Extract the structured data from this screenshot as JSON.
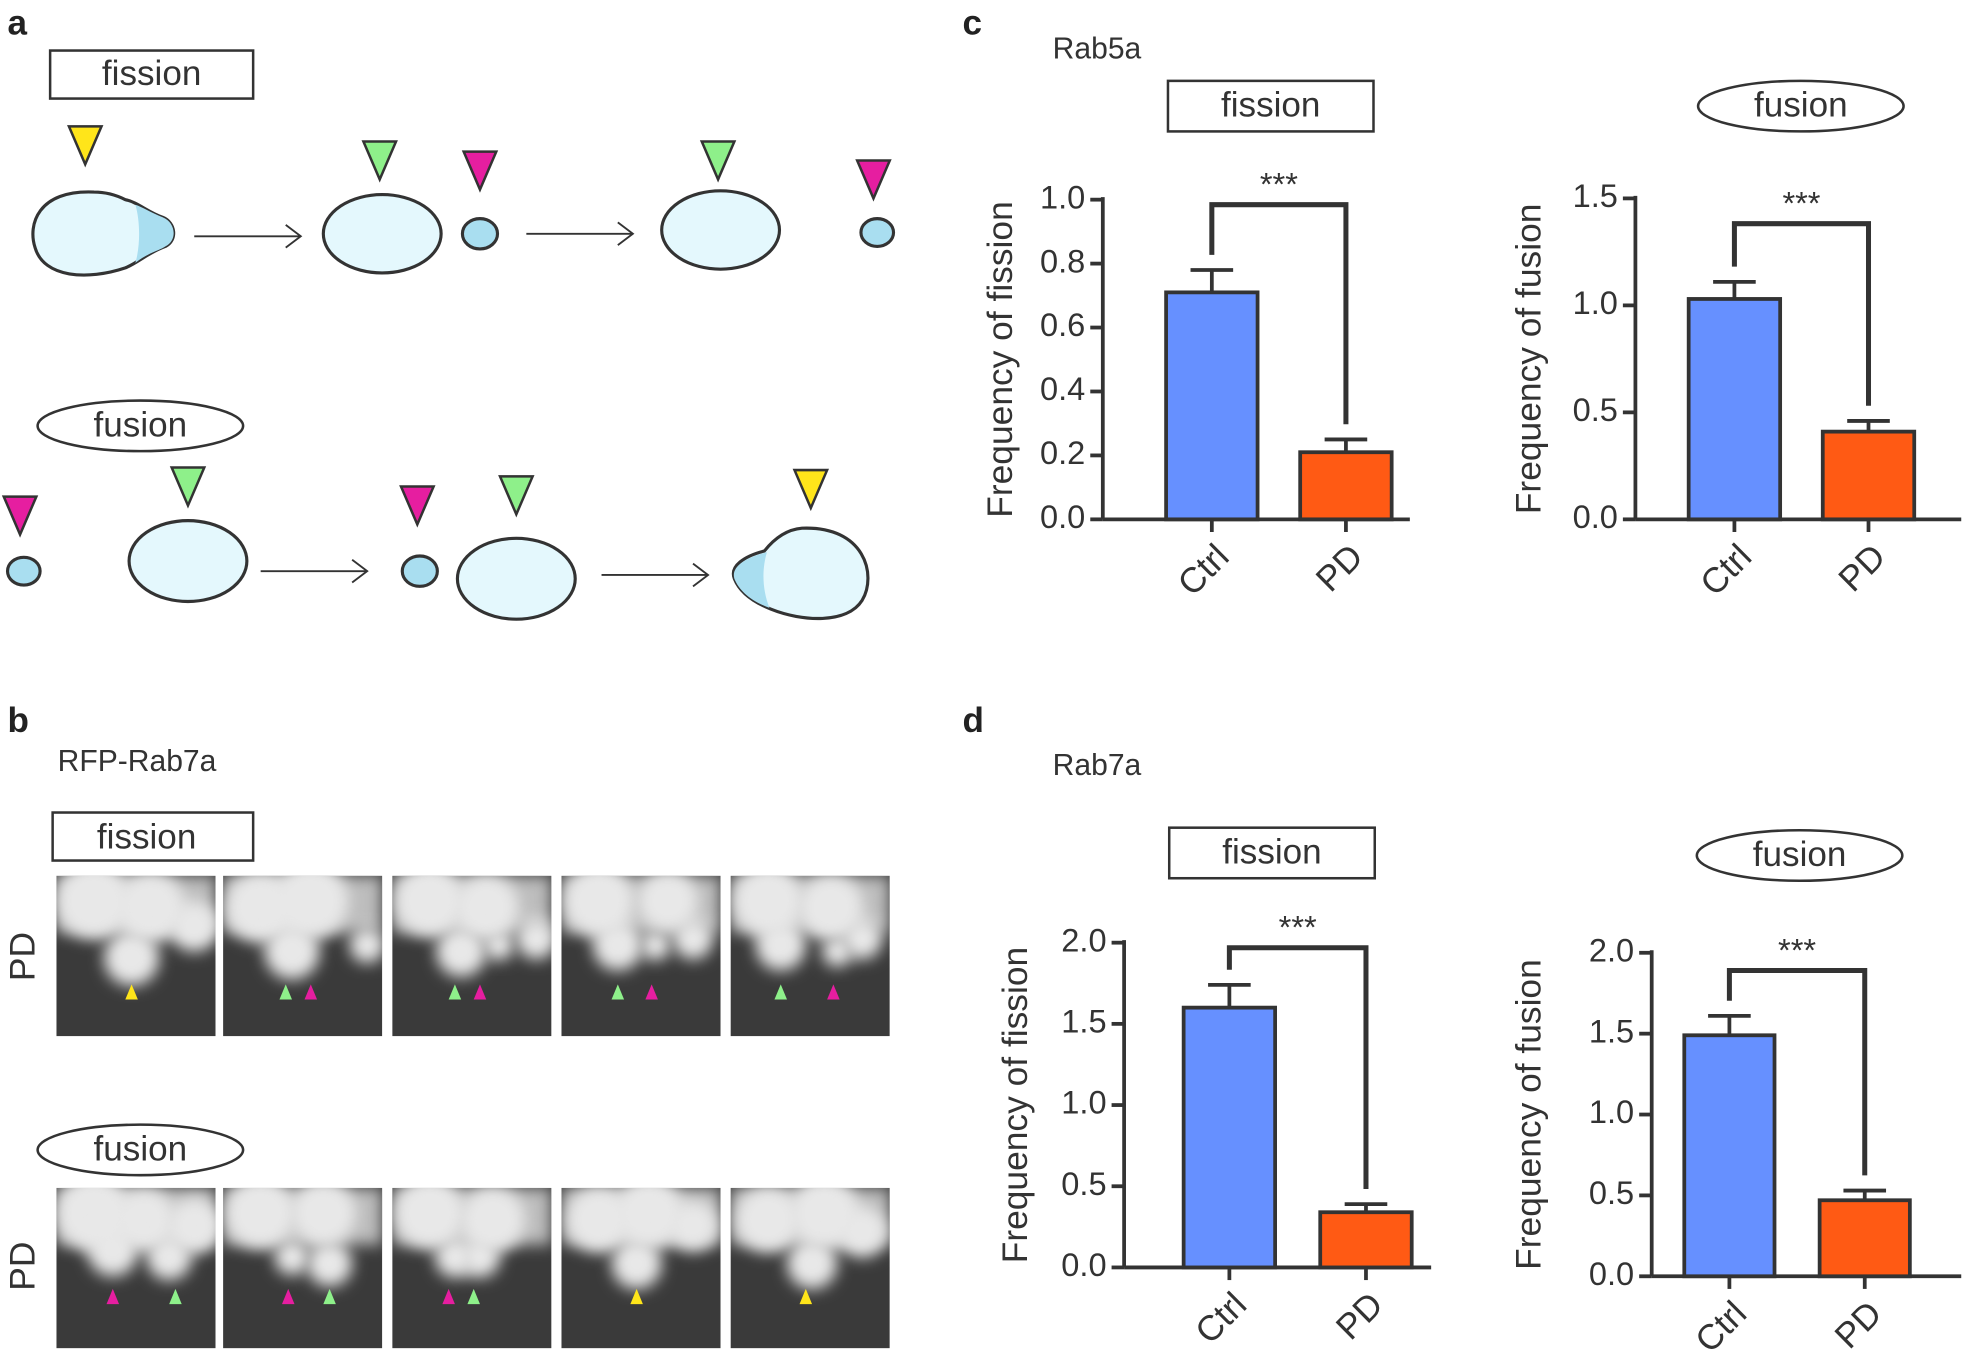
{
  "panels": {
    "a": {
      "label": "a",
      "fission": "fission",
      "fusion": "fusion"
    },
    "b": {
      "label": "b",
      "subtitle": "RFP-Rab7a",
      "fission": "fission",
      "fusion": "fusion",
      "row_labels": [
        "PD",
        "PD"
      ]
    },
    "c": {
      "label": "c",
      "title": "Rab5a"
    },
    "d": {
      "label": "d",
      "title": "Rab7a"
    }
  },
  "chart_data": [
    {
      "type": "bar",
      "title": "fission",
      "title_frame": "rect",
      "ylabel": "Frequency of fission",
      "categories": [
        "Ctrl",
        "PD"
      ],
      "values": [
        0.71,
        0.21
      ],
      "errors": [
        0.07,
        0.04
      ],
      "colors": [
        "#6690ff",
        "#ff5a14"
      ],
      "annotation": "***",
      "ylim": [
        0,
        1.0
      ],
      "yticks": [
        {
          "value": 0,
          "label": "0.0"
        },
        0.2,
        0.4,
        0.6,
        0.8,
        {
          "value": 1,
          "label": "1.0"
        }
      ]
    },
    {
      "type": "bar",
      "title": "fusion",
      "title_frame": "ellipse",
      "ylabel": "Frequency of fusion",
      "categories": [
        "Ctrl",
        "PD"
      ],
      "values": [
        1.03,
        0.41
      ],
      "errors": [
        0.08,
        0.05
      ],
      "colors": [
        "#6690ff",
        "#ff5a14"
      ],
      "annotation": "***",
      "ylim": [
        0,
        1.5
      ],
      "yticks": [
        {
          "value": 0,
          "label": "0.0"
        },
        0.5,
        {
          "value": 1,
          "label": "1.0"
        },
        1.5
      ]
    },
    {
      "type": "bar",
      "title": "fission",
      "title_frame": "rect",
      "ylabel": "Frequency of fission",
      "categories": [
        "Ctrl",
        "PD"
      ],
      "values": [
        1.6,
        0.34
      ],
      "errors": [
        0.14,
        0.05
      ],
      "colors": [
        "#6690ff",
        "#ff5a14"
      ],
      "annotation": "***",
      "ylim": [
        0,
        2.0
      ],
      "yticks": [
        {
          "value": 0,
          "label": "0.0"
        },
        0.5,
        {
          "value": 1,
          "label": "1.0"
        },
        1.5,
        {
          "value": 2,
          "label": "2.0"
        }
      ]
    },
    {
      "type": "bar",
      "title": "fusion",
      "title_frame": "ellipse",
      "ylabel": "Frequency of fusion",
      "categories": [
        "Ctrl",
        "PD"
      ],
      "values": [
        1.49,
        0.47
      ],
      "errors": [
        0.12,
        0.06
      ],
      "colors": [
        "#6690ff",
        "#ff5a14"
      ],
      "annotation": "***",
      "ylim": [
        0,
        2.0
      ],
      "yticks": [
        {
          "value": 0,
          "label": "0.0"
        },
        0.5,
        {
          "value": 1,
          "label": "1.0"
        },
        1.5,
        {
          "value": 2,
          "label": "2.0"
        }
      ]
    }
  ]
}
